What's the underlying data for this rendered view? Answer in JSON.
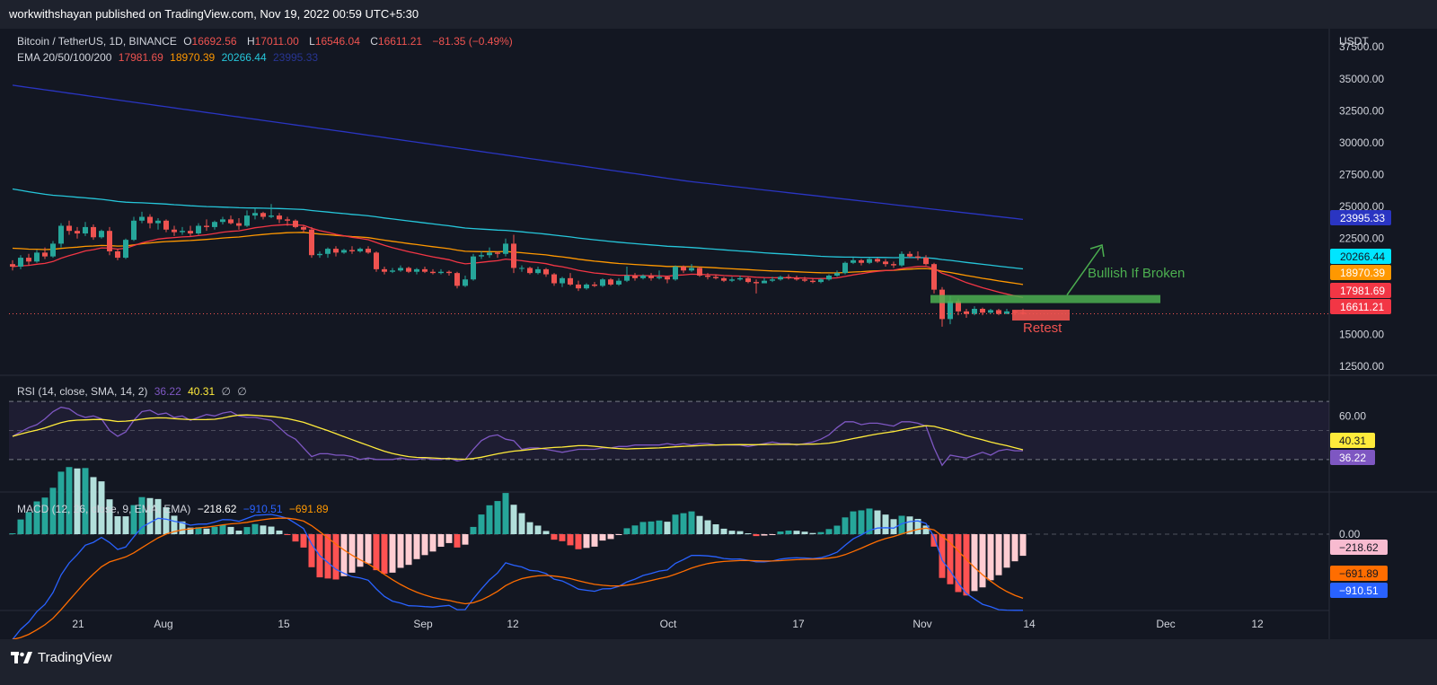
{
  "header": {
    "published_line": "workwithshayan published on TradingView.com, Nov 19, 2022 00:59 UTC+5:30"
  },
  "footer": {
    "brand": "TradingView"
  },
  "legend": {
    "symbol": "Bitcoin / TetherUS, 1D, BINANCE",
    "open_label": "O",
    "open": "16692.56",
    "high_label": "H",
    "high": "17011.00",
    "low_label": "L",
    "low": "16546.04",
    "close_label": "C",
    "close": "16611.21",
    "change": "−81.35 (−0.49%)",
    "ema_label": "EMA 20/50/100/200",
    "ema20": "17981.69",
    "ema50": "18970.39",
    "ema100": "20266.44",
    "ema200": "23995.33",
    "rsi_label": "RSI (14, close, SMA, 14, 2)",
    "rsi_value": "36.22",
    "rsi_ma": "40.31",
    "rsi_na1": "∅",
    "rsi_na2": "∅",
    "macd_label": "MACD (12, 26, close, 9, EMA, EMA)",
    "macd_hist": "−218.62",
    "macd_line": "−910.51",
    "macd_signal": "−691.89"
  },
  "annotations": {
    "bullish": "Bullish If Broken",
    "retest": "Retest"
  },
  "colors": {
    "up": "#26a69a",
    "down": "#ef5350",
    "ema20": "#f23645",
    "ema50": "#ff9800",
    "ema100": "#26c6da",
    "ema200": "#2a35c2",
    "rsi": "#7e57c2",
    "rsi_ma": "#ffeb3b",
    "macd": "#2962ff",
    "signal": "#ff6d00",
    "bullish": "#4caf50"
  },
  "chart_data": {
    "type": "candlestick",
    "price_axis": {
      "unit": "USDT",
      "ticks": [
        "37500.00",
        "35000.00",
        "32500.00",
        "30000.00",
        "27500.00",
        "25000.00",
        "22500.00",
        "15000.00",
        "12500.00"
      ],
      "range": [
        11800,
        38500
      ],
      "labels": [
        {
          "name": "EMA 200",
          "value": "23995.33",
          "color": "#2a35c2"
        },
        {
          "name": "EMA 100",
          "value": "20266.44",
          "color": "#00e5ff"
        },
        {
          "name": "EMA 50",
          "value": "18970.39",
          "color": "#ff9800"
        },
        {
          "name": "EMA 20",
          "value": "17981.69",
          "color": "#f23645"
        },
        {
          "name": "Close",
          "value": "16611.21",
          "color": "#f23645"
        }
      ]
    },
    "rsi_axis": {
      "ticks": [
        "60.00"
      ],
      "labels": [
        "40.31",
        "36.22"
      ]
    },
    "macd_axis": {
      "ticks": [
        "0.00"
      ],
      "labels": [
        "−218.62",
        "−691.89",
        "−910.51"
      ]
    },
    "time_axis": [
      "21",
      "Aug",
      "15",
      "Sep",
      "12",
      "Oct",
      "17",
      "Nov",
      "14",
      "Dec",
      "12"
    ],
    "candles_approx": [
      [
        20500,
        20800,
        20000,
        20300
      ],
      [
        20300,
        21200,
        20100,
        21000
      ],
      [
        21000,
        21300,
        20400,
        20700
      ],
      [
        20700,
        21600,
        20600,
        21400
      ],
      [
        21400,
        21800,
        20900,
        21100
      ],
      [
        21100,
        22300,
        21000,
        22100
      ],
      [
        22100,
        23700,
        21800,
        23500
      ],
      [
        23500,
        23900,
        22800,
        23100
      ],
      [
        23100,
        23400,
        22500,
        22900
      ],
      [
        22900,
        23800,
        22700,
        23400
      ],
      [
        23400,
        23600,
        22400,
        22600
      ],
      [
        22600,
        23200,
        22500,
        23100
      ],
      [
        23100,
        23400,
        21200,
        21500
      ],
      [
        21500,
        21700,
        20800,
        21000
      ],
      [
        21000,
        22500,
        20900,
        22400
      ],
      [
        22400,
        24200,
        22300,
        23900
      ],
      [
        23900,
        24600,
        23700,
        24200
      ],
      [
        24200,
        24400,
        23300,
        23700
      ],
      [
        23700,
        24100,
        23200,
        23900
      ],
      [
        23900,
        24000,
        23000,
        23200
      ],
      [
        23200,
        23500,
        22700,
        23000
      ],
      [
        23000,
        23400,
        22800,
        23100
      ],
      [
        23100,
        23500,
        22700,
        22900
      ],
      [
        22900,
        23700,
        22800,
        23500
      ],
      [
        23500,
        24000,
        23100,
        23400
      ],
      [
        23400,
        23900,
        23200,
        23800
      ],
      [
        23800,
        24200,
        23600,
        24000
      ],
      [
        24000,
        24300,
        23600,
        23700
      ],
      [
        23700,
        24100,
        23200,
        23500
      ],
      [
        23500,
        24700,
        23400,
        24300
      ],
      [
        24300,
        24900,
        24000,
        24500
      ],
      [
        24500,
        24600,
        24000,
        24200
      ],
      [
        24200,
        25200,
        24100,
        24300
      ],
      [
        24300,
        24500,
        23700,
        24000
      ],
      [
        24000,
        24200,
        23500,
        23900
      ],
      [
        23900,
        24000,
        23300,
        23400
      ],
      [
        23400,
        23500,
        23000,
        23200
      ],
      [
        23200,
        23400,
        21000,
        21200
      ],
      [
        21200,
        21500,
        21000,
        21300
      ],
      [
        21300,
        21800,
        21000,
        21700
      ],
      [
        21700,
        21900,
        21100,
        21400
      ],
      [
        21400,
        21700,
        21300,
        21600
      ],
      [
        21600,
        21900,
        21300,
        21500
      ],
      [
        21500,
        21800,
        21400,
        21700
      ],
      [
        21700,
        21900,
        21300,
        21400
      ],
      [
        21400,
        21500,
        19900,
        20100
      ],
      [
        20100,
        20300,
        19700,
        19900
      ],
      [
        19900,
        20200,
        19800,
        20000
      ],
      [
        20000,
        20400,
        19900,
        20200
      ],
      [
        20200,
        20300,
        19800,
        19900
      ],
      [
        19900,
        20200,
        19700,
        20100
      ],
      [
        20100,
        20300,
        19800,
        19900
      ],
      [
        19900,
        20100,
        19700,
        19800
      ],
      [
        19800,
        20100,
        19700,
        19900
      ],
      [
        19900,
        20000,
        19600,
        19800
      ],
      [
        19800,
        19900,
        18600,
        18800
      ],
      [
        18800,
        19600,
        18700,
        19300
      ],
      [
        19300,
        21300,
        19200,
        21100
      ],
      [
        21100,
        21500,
        20900,
        21200
      ],
      [
        21200,
        21800,
        21000,
        21400
      ],
      [
        21400,
        21500,
        21000,
        21300
      ],
      [
        21300,
        22500,
        21100,
        22100
      ],
      [
        22100,
        22800,
        19800,
        20200
      ],
      [
        20200,
        20400,
        19900,
        20200
      ],
      [
        20200,
        20300,
        19700,
        19800
      ],
      [
        19800,
        20300,
        19700,
        20100
      ],
      [
        20100,
        20200,
        19500,
        19700
      ],
      [
        19700,
        19800,
        18800,
        19000
      ],
      [
        19000,
        19500,
        18700,
        19400
      ],
      [
        19400,
        19800,
        18800,
        18900
      ],
      [
        18900,
        19200,
        18400,
        18600
      ],
      [
        18600,
        19000,
        18500,
        18900
      ],
      [
        18900,
        19100,
        18700,
        18800
      ],
      [
        18800,
        19400,
        18700,
        19300
      ],
      [
        19300,
        19400,
        18800,
        18900
      ],
      [
        18900,
        19400,
        18800,
        19200
      ],
      [
        19200,
        20300,
        19100,
        19600
      ],
      [
        19600,
        19800,
        19200,
        19400
      ],
      [
        19400,
        19700,
        19300,
        19600
      ],
      [
        19600,
        19800,
        19200,
        19400
      ],
      [
        19400,
        20000,
        19300,
        19500
      ],
      [
        19500,
        19600,
        19000,
        19300
      ],
      [
        19300,
        20400,
        19200,
        20300
      ],
      [
        20300,
        20400,
        19800,
        20000
      ],
      [
        20000,
        20500,
        19900,
        20200
      ],
      [
        20200,
        20300,
        19500,
        19600
      ],
      [
        19600,
        19800,
        19300,
        19500
      ],
      [
        19500,
        19700,
        19300,
        19400
      ],
      [
        19400,
        19500,
        19100,
        19200
      ],
      [
        19200,
        19500,
        19100,
        19300
      ],
      [
        19300,
        19600,
        19200,
        19400
      ],
      [
        19400,
        19500,
        19000,
        19100
      ],
      [
        19100,
        19300,
        18200,
        19000
      ],
      [
        19000,
        19400,
        19000,
        19200
      ],
      [
        19200,
        19500,
        19100,
        19300
      ],
      [
        19300,
        19600,
        19200,
        19500
      ],
      [
        19500,
        19700,
        19300,
        19400
      ],
      [
        19400,
        19600,
        19200,
        19300
      ],
      [
        19300,
        19500,
        19100,
        19200
      ],
      [
        19200,
        19400,
        19000,
        19100
      ],
      [
        19100,
        19400,
        19000,
        19300
      ],
      [
        19300,
        19700,
        19200,
        19600
      ],
      [
        19600,
        20000,
        19500,
        19800
      ],
      [
        19800,
        20700,
        19700,
        20600
      ],
      [
        20600,
        21000,
        20500,
        20800
      ],
      [
        20800,
        20900,
        20400,
        20600
      ],
      [
        20600,
        21000,
        20500,
        20900
      ],
      [
        20900,
        21000,
        20600,
        20700
      ],
      [
        20700,
        20900,
        20300,
        20500
      ],
      [
        20500,
        20700,
        20200,
        20400
      ],
      [
        20400,
        21500,
        20300,
        21300
      ],
      [
        21300,
        21500,
        21000,
        21100
      ],
      [
        21100,
        21500,
        20800,
        21000
      ],
      [
        21000,
        21200,
        20400,
        20500
      ],
      [
        20500,
        20600,
        18200,
        18500
      ],
      [
        18500,
        18700,
        15600,
        16200
      ],
      [
        16200,
        18000,
        15800,
        17600
      ],
      [
        17600,
        17800,
        16500,
        16800
      ],
      [
        16800,
        17000,
        16300,
        16600
      ],
      [
        16600,
        17200,
        16500,
        17000
      ],
      [
        17000,
        17100,
        16500,
        16700
      ],
      [
        16700,
        17000,
        16600,
        16900
      ],
      [
        16900,
        17000,
        16500,
        16600
      ],
      [
        16600,
        17000,
        16600,
        16800
      ],
      [
        16800,
        16900,
        16500,
        16700
      ],
      [
        16693,
        17011,
        16546,
        16611
      ]
    ],
    "ema200_approx": [
      34500,
      30800,
      27000,
      24000
    ],
    "rsi_approx": [
      46,
      49,
      52,
      54,
      58,
      63,
      66,
      65,
      61,
      59,
      60,
      58,
      50,
      46,
      49,
      57,
      63,
      64,
      61,
      62,
      59,
      60,
      57,
      59,
      61,
      60,
      62,
      63,
      60,
      59,
      59,
      58,
      57,
      52,
      47,
      44,
      38,
      32,
      34,
      34,
      33,
      33,
      32,
      30,
      31,
      30,
      30,
      30,
      31,
      30,
      30,
      31,
      30,
      30,
      31,
      29,
      30,
      37,
      43,
      46,
      47,
      44,
      43,
      37,
      38,
      38,
      37,
      36,
      35,
      36,
      37,
      37,
      37,
      38,
      38,
      39,
      39,
      40,
      40,
      40,
      40,
      41,
      40,
      41,
      40,
      41,
      41,
      40,
      40,
      40,
      40,
      39,
      40,
      41,
      42,
      41,
      41,
      40,
      41,
      42,
      44,
      47,
      52,
      56,
      56,
      54,
      55,
      55,
      54,
      53,
      56,
      56,
      55,
      53,
      38,
      26,
      33,
      32,
      31,
      33,
      35,
      33,
      36,
      37,
      36,
      36
    ]
  }
}
